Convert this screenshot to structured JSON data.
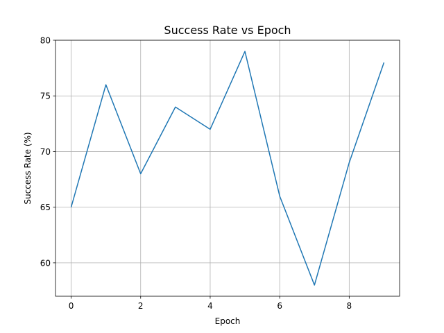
{
  "chart_data": {
    "type": "line",
    "title": "Success Rate vs Epoch",
    "xlabel": "Epoch",
    "ylabel": "Success Rate (%)",
    "x": [
      0,
      1,
      2,
      3,
      4,
      5,
      6,
      7,
      8,
      9
    ],
    "series": [
      {
        "values": [
          65,
          76,
          68,
          74,
          72,
          79,
          66,
          58,
          69,
          78
        ],
        "color": "#1f77b4"
      }
    ],
    "xlim": [
      -0.45,
      9.45
    ],
    "ylim": [
      57.0,
      80.0
    ],
    "xticks": [
      0,
      2,
      4,
      6,
      8
    ],
    "yticks": [
      60,
      65,
      70,
      75,
      80
    ],
    "xtick_labels": [
      "0",
      "2",
      "4",
      "6",
      "8"
    ],
    "ytick_labels": [
      "60",
      "65",
      "70",
      "75",
      "80"
    ],
    "grid": true,
    "legend": false
  }
}
